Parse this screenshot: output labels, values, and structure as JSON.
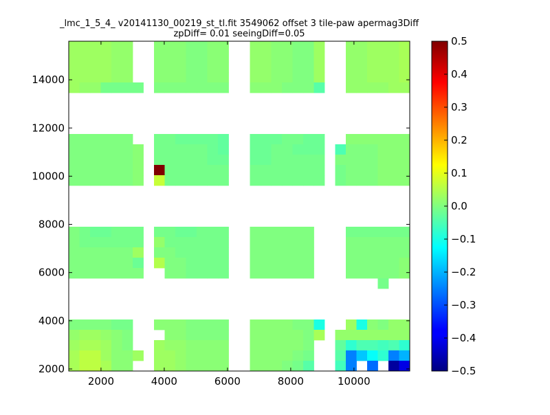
{
  "chart_data": {
    "type": "heatmap",
    "title": "_lmc_1_5_4_ v20141130_00219_st_tl.fit 3549062 offset 3 tile-paw apermag3Diff",
    "subtitle": "zpDiff= 0.01 seeingDiff=0.05",
    "xlabel": "",
    "ylabel": "",
    "xlim": [
      980,
      11764
    ],
    "ylim": [
      1914,
      15600
    ],
    "x_ticks": [
      2000,
      4000,
      6000,
      8000,
      10000
    ],
    "y_ticks": [
      2000,
      4000,
      6000,
      8000,
      10000,
      12000,
      14000
    ],
    "colormap": "jet",
    "color_range": [
      -0.5,
      0.5
    ],
    "colorbar_ticks": [
      0.5,
      0.4,
      0.3,
      0.2,
      0.1,
      0.0,
      -0.1,
      -0.2,
      -0.3,
      -0.4,
      -0.5
    ],
    "colorbar_tick_labels": [
      "0.5",
      "0.4",
      "0.3",
      "0.2",
      "0.1",
      "0.0",
      "−0.1",
      "−0.2",
      "−0.3",
      "−0.4",
      "−0.5"
    ],
    "grid": false,
    "rows_top_to_bottom": [
      [
        0.03,
        0.03,
        0.03,
        0.03,
        0.02,
        0.02,
        null,
        null,
        0.01,
        0.01,
        0.01,
        0.0,
        0.0,
        0.01,
        0.01,
        null,
        null,
        0.02,
        0.02,
        0.01,
        0.01,
        0.0,
        0.0,
        0.03,
        null,
        null,
        0.02,
        0.02,
        0.03,
        0.03,
        0.03,
        0.04
      ],
      [
        0.03,
        0.03,
        0.03,
        0.03,
        0.02,
        0.02,
        null,
        null,
        0.01,
        0.01,
        0.01,
        0.0,
        0.0,
        0.01,
        0.01,
        null,
        null,
        0.02,
        0.02,
        0.01,
        0.01,
        0.0,
        0.0,
        0.03,
        null,
        null,
        0.02,
        0.02,
        0.03,
        0.03,
        0.03,
        0.04
      ],
      [
        0.03,
        0.03,
        0.03,
        0.03,
        0.02,
        0.02,
        null,
        null,
        0.01,
        0.01,
        0.01,
        0.0,
        0.0,
        0.01,
        0.01,
        null,
        null,
        0.02,
        0.02,
        0.01,
        0.01,
        0.0,
        0.0,
        0.03,
        null,
        null,
        0.02,
        0.02,
        0.03,
        0.03,
        0.03,
        0.04
      ],
      [
        0.03,
        0.03,
        0.03,
        0.03,
        0.02,
        0.02,
        null,
        null,
        0.01,
        0.01,
        0.01,
        0.0,
        0.0,
        0.01,
        0.01,
        null,
        null,
        0.02,
        0.02,
        0.01,
        0.01,
        0.0,
        0.0,
        0.03,
        null,
        null,
        0.02,
        0.02,
        0.03,
        0.03,
        0.03,
        0.04
      ],
      [
        0.03,
        0.02,
        0.02,
        -0.01,
        -0.01,
        -0.01,
        -0.01,
        null,
        0.0,
        0.0,
        0.0,
        0.0,
        0.0,
        0.0,
        0.0,
        null,
        null,
        0.01,
        0.01,
        0.01,
        0.0,
        0.0,
        0.0,
        -0.04,
        null,
        null,
        0.02,
        0.02,
        0.02,
        0.02,
        0.03,
        0.03
      ],
      [
        null,
        null,
        null,
        null,
        null,
        null,
        null,
        null,
        null,
        null,
        null,
        null,
        null,
        null,
        null,
        null,
        null,
        null,
        null,
        null,
        null,
        null,
        null,
        null,
        null,
        null,
        null,
        null,
        null,
        null,
        null,
        null
      ],
      [
        null,
        null,
        null,
        null,
        null,
        null,
        null,
        null,
        null,
        null,
        null,
        null,
        null,
        null,
        null,
        null,
        null,
        null,
        null,
        null,
        null,
        null,
        null,
        null,
        null,
        null,
        null,
        null,
        null,
        null,
        null,
        null
      ],
      [
        null,
        null,
        null,
        null,
        null,
        null,
        null,
        null,
        null,
        null,
        null,
        null,
        null,
        null,
        null,
        null,
        null,
        null,
        null,
        null,
        null,
        null,
        null,
        null,
        null,
        null,
        null,
        null,
        null,
        null,
        null,
        null
      ],
      [
        null,
        null,
        null,
        null,
        null,
        null,
        null,
        null,
        null,
        null,
        null,
        null,
        null,
        null,
        null,
        null,
        null,
        null,
        null,
        null,
        null,
        null,
        null,
        null,
        null,
        null,
        null,
        null,
        null,
        null,
        null,
        null
      ],
      [
        0.0,
        0.0,
        0.0,
        0.0,
        0.0,
        0.0,
        null,
        null,
        -0.01,
        -0.01,
        -0.02,
        -0.02,
        -0.02,
        -0.02,
        -0.03,
        null,
        null,
        -0.02,
        -0.02,
        -0.02,
        -0.01,
        -0.01,
        -0.02,
        -0.02,
        null,
        null,
        0.01,
        0.01,
        0.01,
        0.01,
        0.01,
        0.01
      ],
      [
        0.0,
        0.0,
        0.0,
        0.0,
        0.0,
        0.0,
        0.01,
        null,
        -0.01,
        -0.01,
        -0.01,
        -0.01,
        -0.01,
        -0.02,
        -0.03,
        null,
        null,
        -0.02,
        -0.02,
        -0.01,
        -0.01,
        -0.02,
        -0.02,
        -0.02,
        null,
        -0.05,
        0.0,
        0.0,
        0.0,
        0.01,
        0.01,
        0.01
      ],
      [
        0.0,
        0.0,
        0.0,
        0.0,
        0.0,
        0.0,
        0.01,
        null,
        -0.01,
        -0.01,
        -0.01,
        -0.01,
        -0.01,
        -0.02,
        -0.02,
        null,
        null,
        -0.02,
        -0.02,
        -0.01,
        -0.01,
        -0.01,
        -0.01,
        -0.01,
        null,
        0.0,
        0.0,
        0.0,
        0.0,
        0.01,
        0.01,
        0.01
      ],
      [
        0.0,
        0.0,
        0.0,
        0.0,
        0.0,
        0.0,
        0.01,
        null,
        0.5,
        -0.01,
        -0.01,
        -0.01,
        -0.01,
        -0.01,
        -0.01,
        null,
        null,
        -0.01,
        -0.01,
        -0.01,
        -0.01,
        -0.01,
        -0.01,
        -0.01,
        null,
        -0.01,
        0.0,
        0.0,
        0.0,
        0.01,
        0.01,
        0.01
      ],
      [
        0.0,
        0.0,
        0.0,
        0.0,
        0.0,
        0.0,
        0.01,
        null,
        0.07,
        -0.01,
        -0.01,
        -0.01,
        -0.01,
        -0.01,
        -0.01,
        null,
        null,
        -0.01,
        -0.01,
        -0.01,
        -0.01,
        -0.01,
        -0.01,
        -0.01,
        null,
        -0.01,
        0.0,
        0.0,
        0.0,
        0.01,
        0.01,
        0.01
      ],
      [
        null,
        null,
        null,
        null,
        null,
        null,
        null,
        null,
        null,
        null,
        null,
        null,
        null,
        null,
        null,
        null,
        null,
        null,
        null,
        null,
        null,
        null,
        null,
        null,
        null,
        null,
        null,
        null,
        null,
        null,
        null,
        null
      ],
      [
        null,
        null,
        null,
        null,
        null,
        null,
        null,
        null,
        null,
        null,
        null,
        null,
        null,
        null,
        null,
        null,
        null,
        null,
        null,
        null,
        null,
        null,
        null,
        null,
        null,
        null,
        null,
        null,
        null,
        null,
        null,
        null
      ],
      [
        null,
        null,
        null,
        null,
        null,
        null,
        null,
        null,
        null,
        null,
        null,
        null,
        null,
        null,
        null,
        null,
        null,
        null,
        null,
        null,
        null,
        null,
        null,
        null,
        null,
        null,
        null,
        null,
        null,
        null,
        null,
        null
      ],
      [
        null,
        null,
        null,
        null,
        null,
        null,
        null,
        null,
        null,
        null,
        null,
        null,
        null,
        null,
        null,
        null,
        null,
        null,
        null,
        null,
        null,
        null,
        null,
        null,
        null,
        null,
        null,
        null,
        null,
        null,
        null,
        null
      ],
      [
        0.0,
        -0.01,
        -0.02,
        -0.02,
        -0.01,
        -0.01,
        -0.01,
        null,
        -0.01,
        -0.01,
        -0.02,
        -0.02,
        -0.01,
        -0.01,
        -0.01,
        null,
        null,
        0.0,
        0.0,
        0.0,
        0.0,
        0.0,
        0.0,
        null,
        null,
        null,
        -0.01,
        -0.01,
        -0.01,
        -0.01,
        -0.01,
        -0.01
      ],
      [
        0.0,
        -0.01,
        -0.01,
        -0.01,
        -0.01,
        -0.01,
        -0.01,
        null,
        0.02,
        -0.01,
        -0.01,
        -0.01,
        -0.01,
        -0.01,
        -0.01,
        null,
        null,
        0.0,
        0.0,
        0.0,
        0.0,
        0.0,
        0.0,
        null,
        null,
        null,
        0.0,
        0.0,
        0.0,
        0.0,
        0.0,
        0.0
      ],
      [
        0.0,
        0.0,
        0.0,
        0.0,
        0.0,
        0.0,
        0.03,
        null,
        0.0,
        0.0,
        -0.01,
        -0.01,
        -0.01,
        -0.01,
        -0.01,
        null,
        null,
        0.0,
        0.0,
        0.0,
        0.0,
        0.0,
        0.0,
        null,
        null,
        null,
        0.0,
        0.0,
        0.0,
        0.0,
        0.0,
        0.0
      ],
      [
        0.0,
        0.0,
        0.0,
        0.0,
        0.0,
        0.0,
        -0.02,
        null,
        0.05,
        0.0,
        0.0,
        -0.01,
        -0.01,
        -0.01,
        -0.01,
        null,
        null,
        0.0,
        0.0,
        0.0,
        0.0,
        0.0,
        0.0,
        null,
        null,
        null,
        0.0,
        0.0,
        0.0,
        0.0,
        0.0,
        0.01
      ],
      [
        0.0,
        0.0,
        0.0,
        0.0,
        0.0,
        0.0,
        0.0,
        null,
        null,
        0.0,
        0.0,
        -0.01,
        -0.01,
        -0.01,
        -0.01,
        null,
        null,
        0.0,
        0.0,
        0.0,
        0.0,
        0.0,
        0.0,
        null,
        null,
        null,
        0.0,
        0.0,
        0.0,
        0.0,
        0.0,
        0.01
      ],
      [
        null,
        null,
        null,
        null,
        null,
        null,
        null,
        null,
        null,
        null,
        null,
        null,
        null,
        null,
        null,
        null,
        null,
        null,
        null,
        null,
        null,
        null,
        null,
        null,
        null,
        null,
        null,
        null,
        null,
        -0.01,
        null,
        null
      ],
      [
        null,
        null,
        null,
        null,
        null,
        null,
        null,
        null,
        null,
        null,
        null,
        null,
        null,
        null,
        null,
        null,
        null,
        null,
        null,
        null,
        null,
        null,
        null,
        null,
        null,
        null,
        null,
        null,
        null,
        null,
        null,
        null
      ],
      [
        null,
        null,
        null,
        null,
        null,
        null,
        null,
        null,
        null,
        null,
        null,
        null,
        null,
        null,
        null,
        null,
        null,
        null,
        null,
        null,
        null,
        null,
        null,
        null,
        null,
        null,
        null,
        null,
        null,
        null,
        null,
        null
      ],
      [
        null,
        null,
        null,
        null,
        null,
        null,
        null,
        null,
        null,
        null,
        null,
        null,
        null,
        null,
        null,
        null,
        null,
        null,
        null,
        null,
        null,
        null,
        null,
        null,
        null,
        null,
        null,
        null,
        null,
        null,
        null,
        null
      ],
      [
        0.0,
        0.0,
        0.0,
        0.0,
        -0.01,
        -0.01,
        null,
        null,
        0.01,
        0.01,
        0.01,
        0.0,
        0.0,
        0.0,
        0.0,
        null,
        null,
        0.01,
        0.01,
        0.01,
        0.01,
        0.0,
        0.0,
        -0.1,
        null,
        null,
        0.03,
        -0.1,
        0.01,
        0.0,
        0.02,
        0.02
      ],
      [
        0.02,
        0.03,
        0.03,
        0.02,
        0.01,
        0.0,
        null,
        null,
        null,
        0.01,
        0.01,
        0.0,
        0.0,
        0.0,
        0.0,
        null,
        null,
        0.01,
        0.01,
        0.01,
        0.01,
        0.01,
        0.0,
        0.04,
        null,
        0.02,
        0.02,
        0.02,
        0.02,
        0.02,
        0.02,
        0.02
      ],
      [
        0.03,
        0.04,
        0.04,
        0.03,
        0.01,
        0.0,
        null,
        null,
        0.03,
        0.02,
        0.02,
        0.01,
        0.01,
        0.01,
        0.01,
        null,
        null,
        0.01,
        0.01,
        0.01,
        0.01,
        0.01,
        0.0,
        null,
        null,
        -0.03,
        -0.08,
        -0.05,
        -0.05,
        -0.06,
        -0.05,
        -0.08
      ],
      [
        0.04,
        0.06,
        0.06,
        0.03,
        0.01,
        0.01,
        0.03,
        null,
        0.03,
        0.03,
        0.02,
        0.01,
        0.01,
        0.01,
        0.01,
        null,
        null,
        0.01,
        0.01,
        0.01,
        0.01,
        0.0,
        -0.01,
        null,
        null,
        -0.04,
        -0.25,
        -0.18,
        -0.12,
        -0.08,
        -0.25,
        -0.2
      ],
      [
        0.04,
        0.06,
        0.06,
        0.04,
        0.01,
        0.01,
        null,
        null,
        0.03,
        0.03,
        0.02,
        0.01,
        0.01,
        0.01,
        0.01,
        null,
        null,
        0.01,
        0.01,
        0.01,
        0.0,
        -0.01,
        -0.04,
        null,
        null,
        -0.06,
        -0.25,
        null,
        -0.27,
        null,
        -0.47,
        -0.4
      ]
    ]
  }
}
